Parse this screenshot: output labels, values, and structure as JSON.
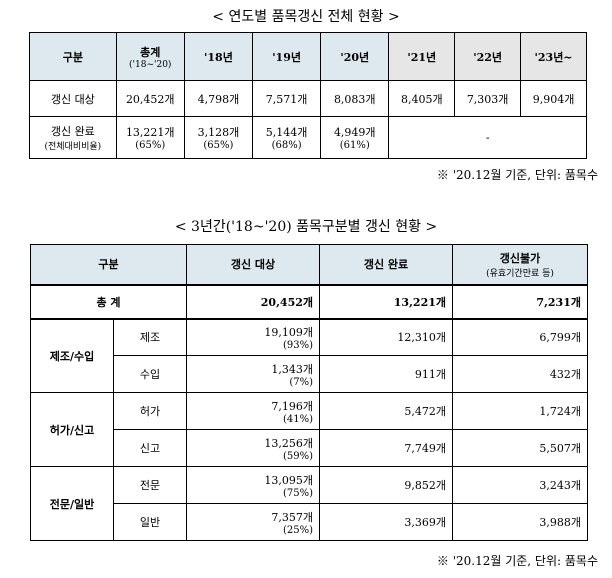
{
  "table1": {
    "title": "< 연도별 품목갱신 전체 현황 >",
    "headers": {
      "category": "구분",
      "total": "총계",
      "total_sub": "('18~'20)",
      "y18": "'18년",
      "y19": "'19년",
      "y20": "'20년",
      "y21": "'21년",
      "y22": "'22년",
      "y23": "'23년~"
    },
    "row1": {
      "label": "갱신 대상",
      "total": "20,452개",
      "y18": "4,798개",
      "y19": "7,571개",
      "y20": "8,083개",
      "y21": "8,405개",
      "y22": "7,303개",
      "y23": "9,904개"
    },
    "row2": {
      "label": "갱신 완료",
      "label_sub": "(전체대비비율)",
      "total": "13,221개",
      "total_pct": "(65%)",
      "y18": "3,128개",
      "y18_pct": "(65%)",
      "y19": "5,144개",
      "y19_pct": "(68%)",
      "y20": "4,949개",
      "y20_pct": "(61%)",
      "future": "-"
    },
    "note": "※ '20.12월 기준, 단위: 품목수"
  },
  "table2": {
    "title": "< 3년간('18~'20) 품목구분별 갱신 현황 >",
    "headers": {
      "category": "구분",
      "target": "갱신 대상",
      "done": "갱신 완료",
      "fail": "갱신불가",
      "fail_sub": "(유효기간만료 등)"
    },
    "total": {
      "label": "총 계",
      "target": "20,452개",
      "done": "13,221개",
      "fail": "7,231개"
    },
    "groups": [
      {
        "label": "제조/수입",
        "rows": [
          {
            "sub": "제조",
            "target": "19,109개",
            "pct": "(93%)",
            "done": "12,310개",
            "fail": "6,799개"
          },
          {
            "sub": "수입",
            "target": "1,343개",
            "pct": "(7%)",
            "done": "911개",
            "fail": "432개"
          }
        ]
      },
      {
        "label": "허가/신고",
        "rows": [
          {
            "sub": "허가",
            "target": "7,196개",
            "pct": "(41%)",
            "done": "5,472개",
            "fail": "1,724개"
          },
          {
            "sub": "신고",
            "target": "13,256개",
            "pct": "(59%)",
            "done": "7,749개",
            "fail": "5,507개"
          }
        ]
      },
      {
        "label": "전문/일반",
        "rows": [
          {
            "sub": "전문",
            "target": "13,095개",
            "pct": "(75%)",
            "done": "9,852개",
            "fail": "3,243개"
          },
          {
            "sub": "일반",
            "target": "7,357개",
            "pct": "(25%)",
            "done": "3,369개",
            "fail": "3,988개"
          }
        ]
      }
    ],
    "note": "※ '20.12월 기준, 단위: 품목수"
  }
}
